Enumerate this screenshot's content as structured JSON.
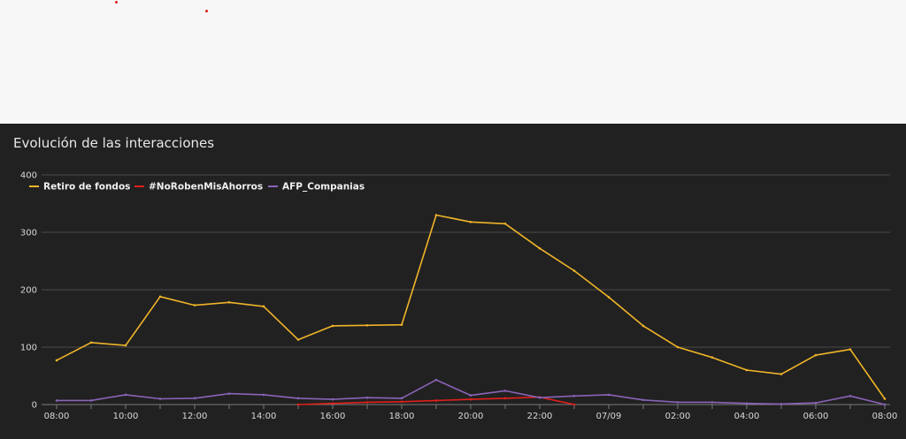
{
  "panel": {
    "title": "Evolución de las interacciones"
  },
  "chart_data": {
    "type": "line",
    "x": [
      "08:00",
      "09:00",
      "10:00",
      "11:00",
      "12:00",
      "13:00",
      "14:00",
      "15:00",
      "16:00",
      "17:00",
      "18:00",
      "19:00",
      "20:00",
      "21:00",
      "22:00",
      "23:00",
      "07/09",
      "01:00",
      "02:00",
      "03:00",
      "04:00",
      "05:00",
      "06:00",
      "07:00",
      "08:00"
    ],
    "xtick_labels": [
      "08:00",
      "",
      "10:00",
      "",
      "12:00",
      "",
      "14:00",
      "",
      "16:00",
      "",
      "18:00",
      "",
      "20:00",
      "",
      "22:00",
      "",
      "07/09",
      "",
      "02:00",
      "",
      "04:00",
      "",
      "06:00",
      "",
      "08:00"
    ],
    "series": [
      {
        "name": "Retiro de fondos",
        "color": "#f0b429",
        "values": [
          77,
          108,
          103,
          188,
          173,
          178,
          171,
          113,
          137,
          138,
          139,
          330,
          318,
          315,
          272,
          233,
          187,
          137,
          100,
          82,
          60,
          53,
          86,
          96,
          10
        ]
      },
      {
        "name": "#NoRobenMisAhorros",
        "color": "#e0201b",
        "values": [
          null,
          null,
          null,
          null,
          null,
          null,
          null,
          0,
          2,
          4,
          5,
          7,
          9,
          11,
          13,
          0,
          null,
          null,
          null,
          null,
          null,
          null,
          null,
          null,
          null
        ]
      },
      {
        "name": "AFP_Companias",
        "color": "#8a63b8",
        "values": [
          7,
          7,
          17,
          10,
          11,
          19,
          17,
          11,
          9,
          12,
          11,
          43,
          16,
          24,
          12,
          15,
          17,
          8,
          4,
          4,
          2,
          1,
          3,
          15,
          0
        ]
      }
    ],
    "yticks": [
      0,
      100,
      200,
      300,
      400
    ],
    "ylim": [
      0,
      400
    ],
    "grid": true,
    "legend": "top-left"
  }
}
